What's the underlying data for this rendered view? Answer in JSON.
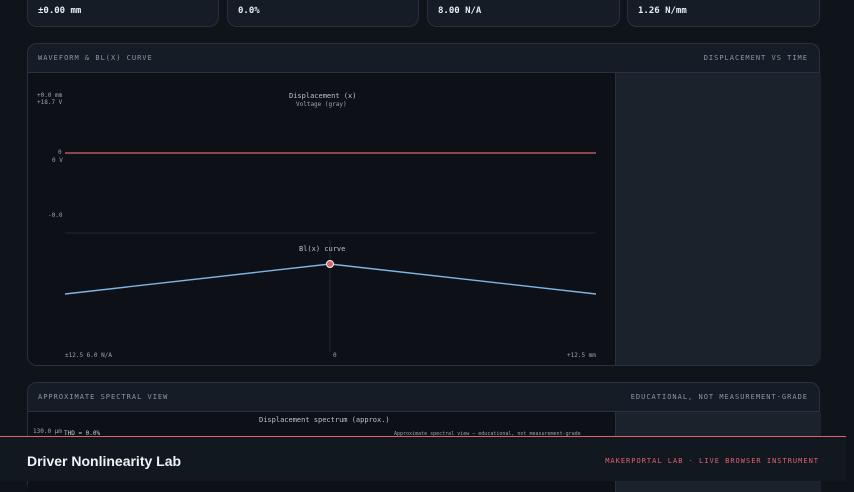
{
  "stats": [
    "±0.00 mm",
    "0.0%",
    "8.00 N/A",
    "1.26 N/mm"
  ],
  "waveform_panel": {
    "title": "WAVEFORM & BL(X) CURVE",
    "subtitle": "DISPLACEMENT VS TIME",
    "displacement_chart": {
      "title": "Displacement (x)",
      "subtitle": "Voltage (gray)",
      "y_top": "+0.0 mm",
      "y_top_voltage": "+18.7 V",
      "zero_label": "0",
      "zero_voltage": "0 V",
      "y_bottom": "-0.0"
    },
    "bl_chart": {
      "title": "Bl(x) curve",
      "left_label": "±12.5 6.0 N/A",
      "center_label": "0",
      "right_label": "+12.5 mm"
    }
  },
  "spectrum_panel": {
    "title": "APPROXIMATE SPECTRAL VIEW",
    "subtitle": "EDUCATIONAL, NOT MEASUREMENT-GRADE",
    "chart_title": "Displacement spectrum (approx.)",
    "y_top": "130.0 μm",
    "thd": "THD = 0.0%",
    "note": "Approximate spectral view — educational, not measurement-grade"
  },
  "footer": {
    "title": "Driver Nonlinearity Lab",
    "tag": "MAKERPORTAL LAB · LIVE BROWSER INSTRUMENT"
  },
  "colors": {
    "accent": "#e0606e",
    "bl_curve": "#7fb3e0",
    "background": "#0f141b"
  },
  "chart_data": [
    {
      "type": "line",
      "title": "Displacement (x)",
      "subtitle": "Voltage (gray)",
      "series": [
        {
          "x": [
            0,
            1
          ],
          "values": [
            0,
            0
          ]
        }
      ]
    },
    {
      "type": "line",
      "title": "Bl(x) curve",
      "x": [
        -12.5,
        0,
        12.5
      ],
      "series": [
        {
          "values": [
            6.0,
            8.0,
            6.0
          ]
        }
      ],
      "xlabel": "mm"
    }
  ]
}
